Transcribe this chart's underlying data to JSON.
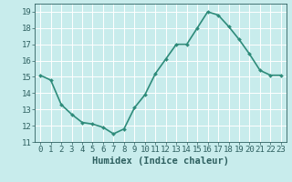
{
  "x": [
    0,
    1,
    2,
    3,
    4,
    5,
    6,
    7,
    8,
    9,
    10,
    11,
    12,
    13,
    14,
    15,
    16,
    17,
    18,
    19,
    20,
    21,
    22,
    23
  ],
  "y": [
    15.1,
    14.8,
    13.3,
    12.7,
    12.2,
    12.1,
    11.9,
    11.5,
    11.8,
    13.1,
    13.9,
    15.2,
    16.1,
    17.0,
    17.0,
    18.0,
    19.0,
    18.8,
    18.1,
    17.3,
    16.4,
    15.4,
    15.1,
    15.1
  ],
  "line_color": "#2e8b7a",
  "marker": "D",
  "marker_size": 2.0,
  "bg_color": "#c8ecec",
  "grid_color": "#ffffff",
  "xlabel": "Humidex (Indice chaleur)",
  "ylim": [
    11,
    19.5
  ],
  "yticks": [
    11,
    12,
    13,
    14,
    15,
    16,
    17,
    18,
    19
  ],
  "xticks": [
    0,
    1,
    2,
    3,
    4,
    5,
    6,
    7,
    8,
    9,
    10,
    11,
    12,
    13,
    14,
    15,
    16,
    17,
    18,
    19,
    20,
    21,
    22,
    23
  ],
  "xtick_labels": [
    "0",
    "1",
    "2",
    "3",
    "4",
    "5",
    "6",
    "7",
    "8",
    "9",
    "10",
    "11",
    "12",
    "13",
    "14",
    "15",
    "16",
    "17",
    "18",
    "19",
    "20",
    "21",
    "22",
    "23"
  ],
  "font_color": "#2e6060",
  "tick_fontsize": 6.5,
  "xlabel_fontsize": 7.5,
  "linewidth": 1.2
}
